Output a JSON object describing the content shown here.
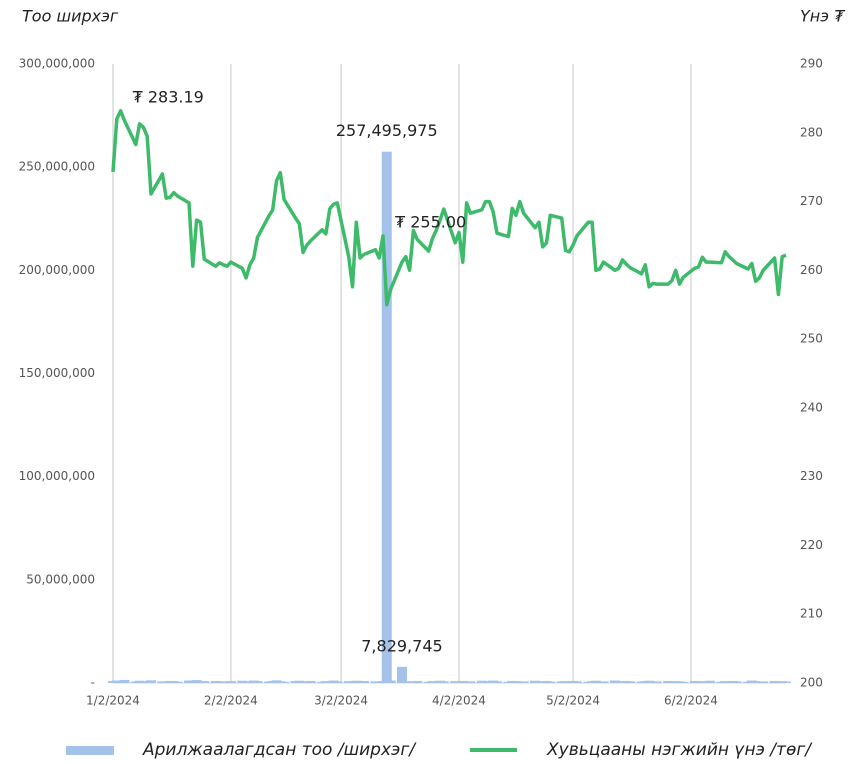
{
  "chart_data": {
    "type": "combo",
    "y_label": "Тоо ширхэг",
    "y2_label": "Үнэ ₮",
    "x": [
      "1/2/2024",
      "1/3/2024",
      "1/4/2024",
      "1/5/2024",
      "1/8/2024",
      "1/9/2024",
      "1/10/2024",
      "1/11/2024",
      "1/12/2024",
      "1/15/2024",
      "1/16/2024",
      "1/17/2024",
      "1/18/2024",
      "1/19/2024",
      "1/22/2024",
      "1/23/2024",
      "1/24/2024",
      "1/25/2024",
      "1/26/2024",
      "1/29/2024",
      "1/30/2024",
      "1/31/2024",
      "2/1/2024",
      "2/2/2024",
      "2/5/2024",
      "2/6/2024",
      "2/7/2024",
      "2/8/2024",
      "2/9/2024",
      "2/12/2024",
      "2/13/2024",
      "2/14/2024",
      "2/15/2024",
      "2/16/2024",
      "2/19/2024",
      "2/20/2024",
      "2/21/2024",
      "2/22/2024",
      "2/23/2024",
      "2/26/2024",
      "2/27/2024",
      "2/28/2024",
      "2/29/2024",
      "3/1/2024",
      "3/4/2024",
      "3/5/2024",
      "3/6/2024",
      "3/7/2024",
      "3/8/2024",
      "3/11/2024",
      "3/12/2024",
      "3/13/2024",
      "3/14/2024",
      "3/15/2024",
      "3/18/2024",
      "3/19/2024",
      "3/20/2024",
      "3/21/2024",
      "3/22/2024",
      "3/25/2024",
      "3/26/2024",
      "3/27/2024",
      "3/28/2024",
      "3/29/2024",
      "4/1/2024",
      "4/2/2024",
      "4/3/2024",
      "4/4/2024",
      "4/5/2024",
      "4/8/2024",
      "4/9/2024",
      "4/10/2024",
      "4/11/2024",
      "4/12/2024",
      "4/15/2024",
      "4/16/2024",
      "4/17/2024",
      "4/18/2024",
      "4/19/2024",
      "4/22/2024",
      "4/23/2024",
      "4/24/2024",
      "4/25/2024",
      "4/26/2024",
      "4/29/2024",
      "4/30/2024",
      "5/1/2024",
      "5/2/2024",
      "5/3/2024",
      "5/6/2024",
      "5/7/2024",
      "5/8/2024",
      "5/9/2024",
      "5/10/2024",
      "5/13/2024",
      "5/14/2024",
      "5/15/2024",
      "5/16/2024",
      "5/17/2024",
      "5/20/2024",
      "5/21/2024",
      "5/22/2024",
      "5/23/2024",
      "5/24/2024",
      "5/27/2024",
      "5/28/2024",
      "5/29/2024",
      "5/30/2024",
      "5/31/2024",
      "6/3/2024",
      "6/4/2024",
      "6/5/2024",
      "6/6/2024",
      "6/7/2024",
      "6/10/2024",
      "6/11/2024",
      "6/12/2024",
      "6/13/2024",
      "6/14/2024",
      "6/17/2024",
      "6/18/2024",
      "6/19/2024",
      "6/20/2024",
      "6/21/2024",
      "6/24/2024",
      "6/25/2024",
      "6/26/2024",
      "6/27/2024"
    ],
    "xlim": [
      "1/2/2024",
      "6/27/2024"
    ],
    "xticks": [
      "1/2/2024",
      "2/2/2024",
      "3/2/2024",
      "4/2/2024",
      "5/2/2024",
      "6/2/2024"
    ],
    "ylim": [
      0,
      300000000
    ],
    "yticks": [
      {
        "value": 0,
        "label": "-"
      },
      {
        "value": 50000000,
        "label": "50,000,000"
      },
      {
        "value": 100000000,
        "label": "100,000,000"
      },
      {
        "value": 150000000,
        "label": "150,000,000"
      },
      {
        "value": 200000000,
        "label": "200,000,000"
      },
      {
        "value": 250000000,
        "label": "250,000,000"
      },
      {
        "value": 300000000,
        "label": "300,000,000"
      }
    ],
    "y2lim": [
      200,
      290
    ],
    "y2ticks": [
      200,
      210,
      220,
      230,
      240,
      250,
      260,
      270,
      280,
      290
    ],
    "grid": true,
    "legend": "bottom",
    "series": [
      {
        "name": "Арилжаалагдсан тоо /ширхэг/",
        "type": "bar",
        "axis": "y",
        "color": "#a4c2ea",
        "values": [
          900000,
          1200000,
          800000,
          1500000,
          700000,
          1100000,
          600000,
          900000,
          1300000,
          800000,
          700000,
          1000000,
          900000,
          600000,
          1200000,
          800000,
          1400000,
          700000,
          900000,
          1000000,
          600000,
          800000,
          700000,
          900000,
          1100000,
          600000,
          800000,
          1200000,
          900000,
          700000,
          1000000,
          1300000,
          800000,
          600000,
          900000,
          1100000,
          700000,
          800000,
          1000000,
          600000,
          900000,
          700000,
          1200000,
          800000,
          900000,
          700000,
          1100000,
          600000,
          1000000,
          800000,
          700000,
          900000,
          257495975,
          1200000,
          7829745,
          900000,
          700000,
          800000,
          1000000,
          600000,
          900000,
          700000,
          1100000,
          800000,
          900000,
          700000,
          1000000,
          600000,
          800000,
          1100000,
          900000,
          700000,
          1200000,
          800000,
          600000,
          1000000,
          900000,
          700000,
          800000,
          1100000,
          600000,
          900000,
          1000000,
          700000,
          800000,
          900000,
          700000,
          1000000,
          800000,
          600000,
          900000,
          1100000,
          700000,
          800000,
          1200000,
          900000,
          600000,
          1000000,
          800000,
          700000,
          900000,
          1100000,
          600000,
          800000,
          1000000,
          700000,
          900000,
          800000,
          600000,
          1000000,
          700000,
          900000,
          800000,
          1100000,
          600000,
          900000,
          700000,
          1000000,
          800000,
          600000,
          1200000,
          900000,
          700000,
          800000,
          1000000,
          600000,
          900000,
          700000
        ],
        "value_labels": [
          null,
          null,
          null,
          null,
          null,
          null,
          null,
          null,
          null,
          null,
          null,
          null,
          null,
          null,
          null,
          null,
          null,
          null,
          null,
          null,
          null,
          null,
          null,
          null,
          null,
          null,
          null,
          null,
          null,
          null,
          null,
          null,
          null,
          null,
          null,
          null,
          null,
          null,
          null,
          null,
          null,
          null,
          null,
          null,
          null,
          null,
          null,
          null,
          null,
          null,
          null,
          null,
          "257,495,975",
          null,
          "7,829,745",
          null,
          null,
          null,
          null,
          null,
          null,
          null,
          null,
          null,
          null,
          null,
          null,
          null,
          null,
          null,
          null,
          null,
          null,
          null,
          null,
          null,
          null,
          null,
          null,
          null,
          null,
          null,
          null,
          null,
          null,
          null,
          null,
          null,
          null,
          null,
          null,
          null,
          null,
          null,
          null,
          null,
          null,
          null,
          null,
          null,
          null,
          null,
          null,
          null,
          null,
          null,
          null,
          null,
          null,
          null,
          null,
          null,
          null,
          null,
          null,
          null,
          null,
          null,
          null,
          null,
          null,
          null,
          null,
          null
        ]
      },
      {
        "name": "Хувьцааны нэгжийн үнэ /төг/",
        "type": "line",
        "axis": "y2",
        "color": "#3dbb6a",
        "values": [
          274.3,
          282.0,
          283.19,
          281.8,
          278.3,
          281.3,
          280.8,
          279.5,
          271.1,
          274.0,
          270.5,
          270.6,
          271.3,
          270.8,
          269.8,
          260.6,
          267.3,
          267.0,
          261.6,
          260.6,
          261.1,
          260.8,
          260.6,
          261.2,
          260.3,
          258.9,
          260.8,
          261.8,
          264.8,
          267.9,
          268.8,
          273.0,
          274.2,
          270.3,
          267.6,
          266.8,
          262.6,
          263.7,
          264.3,
          265.9,
          265.3,
          268.9,
          269.6,
          269.8,
          262.0,
          257.6,
          267.0,
          261.8,
          262.3,
          263.0,
          261.8,
          265.0,
          255.0,
          257.2,
          261.2,
          262.0,
          260.0,
          265.8,
          264.5,
          262.8,
          264.6,
          265.8,
          267.3,
          268.9,
          264.0,
          265.5,
          261.2,
          269.8,
          268.3,
          268.8,
          270.0,
          270.0,
          268.5,
          265.4,
          264.9,
          269.0,
          268.0,
          270.0,
          268.3,
          266.2,
          267.0,
          263.4,
          264.0,
          268.0,
          267.6,
          262.9,
          262.7,
          263.7,
          265.0,
          267.0,
          267.0,
          260.0,
          260.2,
          261.2,
          260.0,
          260.3,
          261.5,
          260.9,
          260.4,
          259.5,
          260.8,
          257.6,
          258.1,
          258.0,
          258.0,
          258.5,
          260.0,
          258.0,
          259.0,
          260.3,
          260.5,
          261.9,
          261.2,
          261.2,
          261.1,
          262.7,
          262.0,
          261.5,
          261.0,
          260.2,
          261.0,
          258.4,
          258.9,
          260.0,
          261.8,
          256.5,
          262.0,
          262.2
        ],
        "value_labels": [
          null,
          null,
          "₮ 283.19",
          null,
          null,
          null,
          null,
          null,
          null,
          null,
          null,
          null,
          null,
          null,
          null,
          null,
          null,
          null,
          null,
          null,
          null,
          null,
          null,
          null,
          null,
          null,
          null,
          null,
          null,
          null,
          null,
          null,
          null,
          null,
          null,
          null,
          null,
          null,
          null,
          null,
          null,
          null,
          null,
          null,
          null,
          null,
          null,
          null,
          null,
          null,
          null,
          "₮ 255.00",
          null,
          null,
          null,
          null,
          null,
          null,
          null,
          null,
          null,
          null,
          null,
          null,
          null,
          null,
          null,
          null,
          null,
          null,
          null,
          null,
          null,
          null,
          null,
          null,
          null,
          null,
          null,
          null,
          null,
          null,
          null,
          null,
          null,
          null,
          null,
          null,
          null,
          null,
          null,
          null,
          null,
          null,
          null,
          null,
          null,
          null,
          null,
          null,
          null,
          null,
          null,
          null,
          null,
          null,
          null,
          null,
          null,
          null,
          null,
          null,
          null,
          null,
          null,
          null,
          null,
          null,
          null,
          null,
          null,
          null,
          null
        ]
      }
    ]
  }
}
